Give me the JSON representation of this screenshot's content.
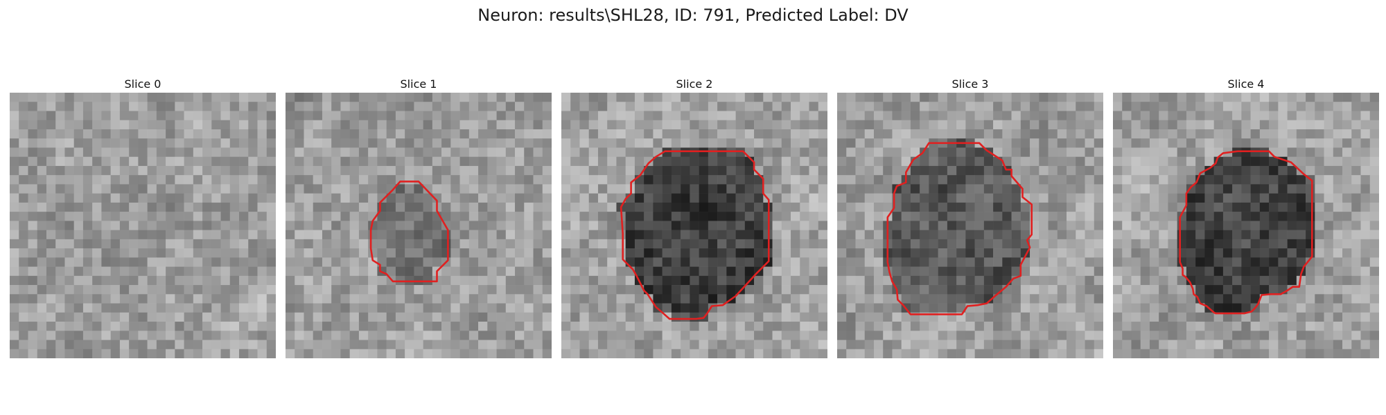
{
  "figure": {
    "title": "Neuron: results\\SHL28, ID: 791, Predicted Label: DV",
    "grid_size": 29,
    "contour_color": "#e02020"
  },
  "panels": [
    {
      "title": "Slice 0",
      "seed": 11,
      "has_contour": false,
      "darkness": 0
    },
    {
      "title": "Slice 1",
      "seed": 27,
      "has_contour": true,
      "darkness": 0.18,
      "contour": [
        [
          12.5,
          9.7
        ],
        [
          14.5,
          9.7
        ],
        [
          16.5,
          11.8
        ],
        [
          16.5,
          12.9
        ],
        [
          17.7,
          15.0
        ],
        [
          17.7,
          18.3
        ],
        [
          16.5,
          19.5
        ],
        [
          16.5,
          20.6
        ],
        [
          13.8,
          20.6
        ],
        [
          11.7,
          20.6
        ],
        [
          11.0,
          19.8
        ],
        [
          10.3,
          19.5
        ],
        [
          10.3,
          18.8
        ],
        [
          9.5,
          18.3
        ],
        [
          9.3,
          17.0
        ],
        [
          9.3,
          15.0
        ],
        [
          9.5,
          14.0
        ],
        [
          10.3,
          12.9
        ],
        [
          10.3,
          12.0
        ],
        [
          11.7,
          10.6
        ]
      ]
    },
    {
      "title": "Slice 2",
      "seed": 43,
      "has_contour": true,
      "darkness": 0.38,
      "contour": [
        [
          11.3,
          6.4
        ],
        [
          19.8,
          6.4
        ],
        [
          21.0,
          7.6
        ],
        [
          21.0,
          8.4
        ],
        [
          22.0,
          9.4
        ],
        [
          22.0,
          11.0
        ],
        [
          22.6,
          11.7
        ],
        [
          22.6,
          18.4
        ],
        [
          21.2,
          19.8
        ],
        [
          20.1,
          21.0
        ],
        [
          19.0,
          22.2
        ],
        [
          17.6,
          23.2
        ],
        [
          16.4,
          23.3
        ],
        [
          15.9,
          24.1
        ],
        [
          15.5,
          24.6
        ],
        [
          14.7,
          24.7
        ],
        [
          14.0,
          24.7
        ],
        [
          11.8,
          24.7
        ],
        [
          11.0,
          24.0
        ],
        [
          10.3,
          23.4
        ],
        [
          9.4,
          22.0
        ],
        [
          9.0,
          21.6
        ],
        [
          8.2,
          20.0
        ],
        [
          7.8,
          19.3
        ],
        [
          6.7,
          18.2
        ],
        [
          6.7,
          15.4
        ],
        [
          6.5,
          12.5
        ],
        [
          7.0,
          11.6
        ],
        [
          7.6,
          11.0
        ],
        [
          7.6,
          9.8
        ],
        [
          8.6,
          9.0
        ],
        [
          9.5,
          7.7
        ],
        [
          10.3,
          7.0
        ]
      ]
    },
    {
      "title": "Slice 3",
      "seed": 59,
      "has_contour": true,
      "darkness": 0.28,
      "contour": [
        [
          10.0,
          5.5
        ],
        [
          15.5,
          5.5
        ],
        [
          16.3,
          6.3
        ],
        [
          18.0,
          7.4
        ],
        [
          18.4,
          8.4
        ],
        [
          19.0,
          8.4
        ],
        [
          19.0,
          9.1
        ],
        [
          20.2,
          10.5
        ],
        [
          20.2,
          11.4
        ],
        [
          21.2,
          12.2
        ],
        [
          21.2,
          15.5
        ],
        [
          20.7,
          16.1
        ],
        [
          21.0,
          16.9
        ],
        [
          20.0,
          18.8
        ],
        [
          20.0,
          20.0
        ],
        [
          19.2,
          20.3
        ],
        [
          18.4,
          21.2
        ],
        [
          17.2,
          22.2
        ],
        [
          16.3,
          23.0
        ],
        [
          15.3,
          23.2
        ],
        [
          14.2,
          23.3
        ],
        [
          13.6,
          24.2
        ],
        [
          11.5,
          24.2
        ],
        [
          11.0,
          24.2
        ],
        [
          9.8,
          24.2
        ],
        [
          9.5,
          24.2
        ],
        [
          8.0,
          24.2
        ],
        [
          7.2,
          23.2
        ],
        [
          6.6,
          22.6
        ],
        [
          6.5,
          21.5
        ],
        [
          6.0,
          20.6
        ],
        [
          5.7,
          19.6
        ],
        [
          5.5,
          18.5
        ],
        [
          5.5,
          15.6
        ],
        [
          5.5,
          13.6
        ],
        [
          6.2,
          12.6
        ],
        [
          6.2,
          11.0
        ],
        [
          6.5,
          10.2
        ],
        [
          7.5,
          9.8
        ],
        [
          7.5,
          8.7
        ],
        [
          8.3,
          7.3
        ],
        [
          9.3,
          6.6
        ]
      ]
    },
    {
      "title": "Slice 4",
      "seed": 71,
      "has_contour": true,
      "darkness": 0.36,
      "contour": [
        [
          13.6,
          6.4
        ],
        [
          17.0,
          6.4
        ],
        [
          17.6,
          7.0
        ],
        [
          19.4,
          7.6
        ],
        [
          20.8,
          8.9
        ],
        [
          21.7,
          9.6
        ],
        [
          21.7,
          17.9
        ],
        [
          20.8,
          19.0
        ],
        [
          20.5,
          19.8
        ],
        [
          20.3,
          21.2
        ],
        [
          19.6,
          21.2
        ],
        [
          19.0,
          21.6
        ],
        [
          18.3,
          22.0
        ],
        [
          17.2,
          22.0
        ],
        [
          16.2,
          22.1
        ],
        [
          15.8,
          23.1
        ],
        [
          15.5,
          23.5
        ],
        [
          15.1,
          23.9
        ],
        [
          14.3,
          24.1
        ],
        [
          11.2,
          24.1
        ],
        [
          11.0,
          24.0
        ],
        [
          10.2,
          23.3
        ],
        [
          9.5,
          23.0
        ],
        [
          9.2,
          22.3
        ],
        [
          8.8,
          22.0
        ],
        [
          8.7,
          21.4
        ],
        [
          8.4,
          20.7
        ],
        [
          7.9,
          20.1
        ],
        [
          7.6,
          19.9
        ],
        [
          7.6,
          19.2
        ],
        [
          7.3,
          18.5
        ],
        [
          7.3,
          17.5
        ],
        [
          7.3,
          16.8
        ],
        [
          7.3,
          14.7
        ],
        [
          7.3,
          13.6
        ],
        [
          8.0,
          12.3
        ],
        [
          8.0,
          11.0
        ],
        [
          8.5,
          10.3
        ],
        [
          9.1,
          9.8
        ],
        [
          9.5,
          8.8
        ],
        [
          10.6,
          8.2
        ],
        [
          11.2,
          7.7
        ],
        [
          11.4,
          7.1
        ],
        [
          12.0,
          6.6
        ]
      ]
    }
  ]
}
